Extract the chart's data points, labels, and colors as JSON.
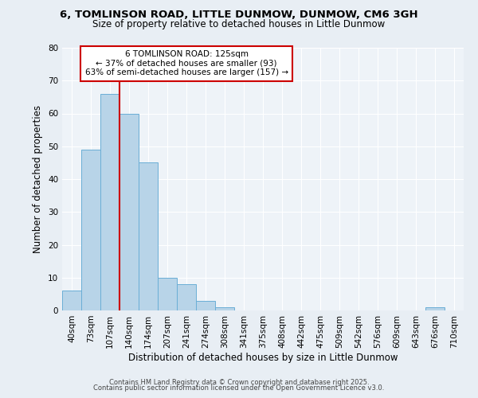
{
  "title": "6, TOMLINSON ROAD, LITTLE DUNMOW, DUNMOW, CM6 3GH",
  "subtitle": "Size of property relative to detached houses in Little Dunmow",
  "bar_labels": [
    "40sqm",
    "73sqm",
    "107sqm",
    "140sqm",
    "174sqm",
    "207sqm",
    "241sqm",
    "274sqm",
    "308sqm",
    "341sqm",
    "375sqm",
    "408sqm",
    "442sqm",
    "475sqm",
    "509sqm",
    "542sqm",
    "576sqm",
    "609sqm",
    "643sqm",
    "676sqm",
    "710sqm"
  ],
  "bar_values": [
    6,
    49,
    66,
    60,
    45,
    10,
    8,
    3,
    1,
    0,
    0,
    0,
    0,
    0,
    0,
    0,
    0,
    0,
    0,
    1,
    0
  ],
  "bar_color": "#b8d4e8",
  "bar_edgecolor": "#6aaed6",
  "xlabel": "Distribution of detached houses by size in Little Dunmow",
  "ylabel": "Number of detached properties",
  "ylim": [
    0,
    80
  ],
  "yticks": [
    0,
    10,
    20,
    30,
    40,
    50,
    60,
    70,
    80
  ],
  "vline_color": "#cc0000",
  "annotation_title": "6 TOMLINSON ROAD: 125sqm",
  "annotation_line2": "← 37% of detached houses are smaller (93)",
  "annotation_line3": "63% of semi-detached houses are larger (157) →",
  "annotation_box_edgecolor": "#cc0000",
  "footnote1": "Contains HM Land Registry data © Crown copyright and database right 2025.",
  "footnote2": "Contains public sector information licensed under the Open Government Licence v3.0.",
  "background_color": "#e8eef4",
  "plot_background_color": "#eef3f8"
}
